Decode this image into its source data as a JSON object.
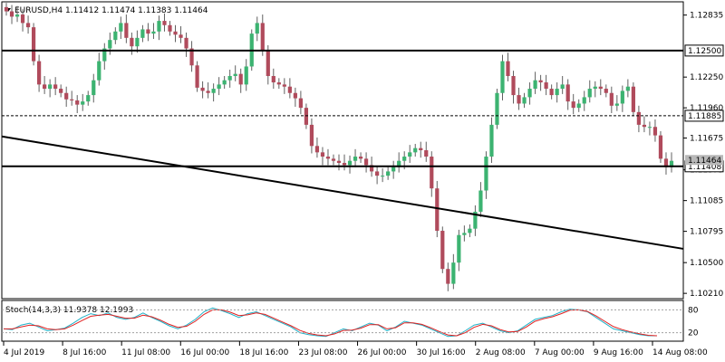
{
  "header": {
    "symbol": "EURUSD,H4",
    "ohlc": "1.11412 1.11474 1.11383 1.11464"
  },
  "indicator": {
    "label": "Stoch(14,3,3) 11.9378 12.1993",
    "levels": [
      "80",
      "20"
    ]
  },
  "colors": {
    "bull_candle": "#3cb371",
    "bear_candle": "#b04b5c",
    "wick": "#606060",
    "stoch_main": "#20b2c8",
    "stoch_signal": "#e02020"
  },
  "chart_data": {
    "type": "candlestick",
    "price_axis_ticks": [
      "1.12835",
      "1.12250",
      "1.11960",
      "1.11675",
      "1.11375",
      "1.11085",
      "1.10795",
      "1.10500",
      "1.10210"
    ],
    "price_axis_ticks_values": [
      1.12835,
      1.1225,
      1.1196,
      1.11675,
      1.11375,
      1.11085,
      1.10795,
      1.105,
      1.1021
    ],
    "ylim": [
      1.1016,
      1.1296
    ],
    "time_axis_ticks": [
      "4 Jul 2019",
      "8 Jul 16:00",
      "11 Jul 08:00",
      "16 Jul 00:00",
      "18 Jul 16:00",
      "23 Jul 08:00",
      "26 Jul 00:00",
      "30 Jul 16:00",
      "2 Aug 08:00",
      "7 Aug 00:00",
      "9 Aug 16:00",
      "14 Aug 08:00"
    ],
    "horizontal_levels": [
      {
        "label": "1.12500",
        "value": 1.125,
        "style": "solid"
      },
      {
        "label": "1.11885",
        "value": 1.11885,
        "style": "dashed"
      },
      {
        "label": "1.11408",
        "value": 1.11408,
        "style": "solid"
      }
    ],
    "current_price_label": "1.11464",
    "current_price": 1.11464,
    "trendline": {
      "start": [
        0,
        1.1169
      ],
      "end": [
        1,
        1.1063
      ]
    },
    "candle_path": [
      1.1287,
      1.1282,
      1.1284,
      1.1276,
      1.1272,
      1.124,
      1.1218,
      1.1214,
      1.1218,
      1.1214,
      1.121,
      1.1204,
      1.1203,
      1.1199,
      1.1202,
      1.1208,
      1.1222,
      1.124,
      1.1252,
      1.126,
      1.1268,
      1.1276,
      1.1262,
      1.1254,
      1.1262,
      1.127,
      1.1266,
      1.1268,
      1.1278,
      1.1274,
      1.1268,
      1.1265,
      1.1262,
      1.1252,
      1.1236,
      1.1215,
      1.1212,
      1.121,
      1.1214,
      1.1218,
      1.1222,
      1.1226,
      1.1228,
      1.1218,
      1.1235,
      1.1266,
      1.1276,
      1.125,
      1.1226,
      1.122,
      1.1218,
      1.1216,
      1.121,
      1.1205,
      1.1196,
      1.118,
      1.116,
      1.1154,
      1.115,
      1.1148,
      1.1146,
      1.1144,
      1.1142,
      1.1146,
      1.115,
      1.1148,
      1.1142,
      1.1136,
      1.1132,
      1.1132,
      1.1136,
      1.114,
      1.1146,
      1.115,
      1.1154,
      1.1158,
      1.1156,
      1.115,
      1.112,
      1.108,
      1.1044,
      1.103,
      1.105,
      1.1076,
      1.1078,
      1.1082,
      1.1098,
      1.1118,
      1.115,
      1.118,
      1.121,
      1.124,
      1.1226,
      1.1208,
      1.12,
      1.1206,
      1.1214,
      1.1222,
      1.122,
      1.1214,
      1.1208,
      1.1214,
      1.1218,
      1.1202,
      1.1196,
      1.12,
      1.1206,
      1.1214,
      1.1216,
      1.1214,
      1.121,
      1.1198,
      1.12,
      1.1212,
      1.1216,
      1.1192,
      1.118,
      1.1178,
      1.1178,
      1.117,
      1.1148,
      1.114,
      1.1146
    ],
    "stochastic": {
      "main": [
        30,
        28,
        40,
        45,
        35,
        25,
        28,
        32,
        45,
        60,
        70,
        65,
        72,
        60,
        55,
        60,
        72,
        60,
        50,
        38,
        30,
        40,
        55,
        75,
        85,
        78,
        70,
        60,
        70,
        75,
        65,
        55,
        45,
        35,
        20,
        15,
        12,
        10,
        20,
        30,
        25,
        35,
        45,
        40,
        25,
        35,
        50,
        45,
        40,
        30,
        20,
        10,
        12,
        25,
        40,
        45,
        35,
        25,
        20,
        25,
        40,
        55,
        60,
        65,
        75,
        82,
        80,
        75,
        60,
        45,
        30,
        25,
        20,
        15,
        12,
        12
      ],
      "signal": [
        30,
        30,
        35,
        40,
        38,
        30,
        28,
        30,
        40,
        52,
        63,
        66,
        68,
        63,
        58,
        58,
        66,
        62,
        53,
        42,
        34,
        37,
        50,
        68,
        80,
        80,
        74,
        65,
        67,
        72,
        68,
        58,
        48,
        38,
        26,
        18,
        14,
        12,
        17,
        26,
        27,
        32,
        41,
        41,
        30,
        33,
        46,
        46,
        42,
        33,
        23,
        14,
        12,
        20,
        34,
        42,
        38,
        28,
        22,
        23,
        35,
        50,
        57,
        62,
        70,
        79,
        80,
        76,
        64,
        50,
        36,
        28,
        22,
        17,
        13,
        12
      ],
      "ylim": [
        0,
        100
      ]
    }
  }
}
